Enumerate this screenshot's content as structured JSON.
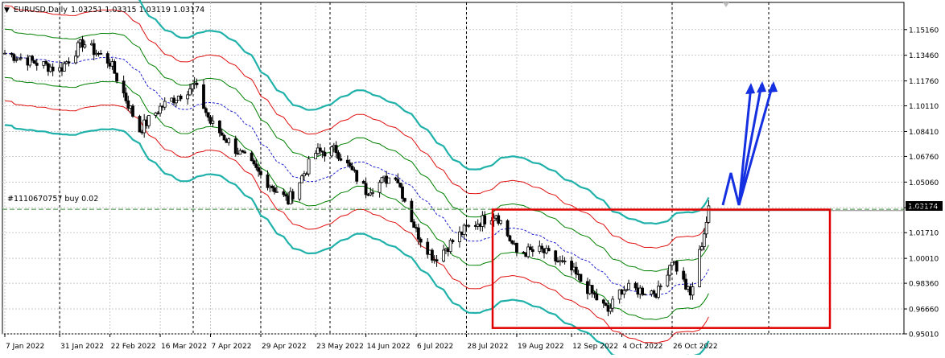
{
  "header": {
    "symbol_label": "EURUSD,Daily",
    "ohlc_label": "1.03251 1.03315 1.03119 1.03174"
  },
  "order_line": {
    "label": "#1110670757 buy 0.02",
    "price": 1.0326
  },
  "current_price": {
    "label": "1.03174",
    "value": 1.03174
  },
  "colors": {
    "background": "#ffffff",
    "grid": "#c8c8c8",
    "candle": "#000000",
    "outer_band": "#20b2aa",
    "middle_band": "#e01010",
    "inner_band": "#008000",
    "center_line": "#2020d0",
    "rectangle": "#e00000",
    "arrows": "#1430e0",
    "order_line": "#3c8c3c",
    "price_tag": "#000000"
  },
  "chart_data": {
    "type": "candlestick",
    "symbol": "EURUSD",
    "timeframe": "Daily",
    "ylim": [
      0.9501,
      1.16
    ],
    "y_ticks": [
      "1.15160",
      "1.13460",
      "1.11760",
      "1.10110",
      "1.08410",
      "1.06760",
      "1.05060",
      "1.03370",
      "1.01710",
      "1.00010",
      "0.98360",
      "0.96660",
      "0.95010"
    ],
    "x_ticks": [
      "7 Jan 2022",
      "31 Jan 2022",
      "22 Feb 2022",
      "16 Mar 2022",
      "7 Apr 2022",
      "29 Apr 2022",
      "23 May 2022",
      "14 Jun 2022",
      "6 Jul 2022",
      "28 Jul 2022",
      "19 Aug 2022",
      "12 Sep 2022",
      "4 Oct 2022",
      "26 Oct 2022"
    ],
    "price_path": [
      [
        "7 Jan 2022",
        1.136
      ],
      [
        "31 Jan 2022",
        1.125
      ],
      [
        "10 Feb 2022",
        1.143
      ],
      [
        "22 Feb 2022",
        1.13
      ],
      [
        "7 Mar 2022",
        1.085
      ],
      [
        "16 Mar 2022",
        1.1
      ],
      [
        "31 Mar 2022",
        1.115
      ],
      [
        "7 Apr 2022",
        1.09
      ],
      [
        "29 Apr 2022",
        1.055
      ],
      [
        "11 May 2022",
        1.038
      ],
      [
        "23 May 2022",
        1.07
      ],
      [
        "1 Jun 2022",
        1.072
      ],
      [
        "14 Jun 2022",
        1.045
      ],
      [
        "27 Jun 2022",
        1.056
      ],
      [
        "6 Jul 2022",
        1.018
      ],
      [
        "14 Jul 2022",
        1.0
      ],
      [
        "28 Jul 2022",
        1.02
      ],
      [
        "10 Aug 2022",
        1.03
      ],
      [
        "19 Aug 2022",
        1.004
      ],
      [
        "30 Aug 2022",
        1.005
      ],
      [
        "12 Sep 2022",
        0.992
      ],
      [
        "28 Sep 2022",
        0.965
      ],
      [
        "4 Oct 2022",
        0.98
      ],
      [
        "20 Oct 2022",
        0.978
      ],
      [
        "26 Oct 2022",
        1.0
      ],
      [
        "3 Nov 2022",
        0.975
      ],
      [
        "11 Nov 2022",
        1.0317
      ]
    ],
    "bands": {
      "center_line": "dashed moving average",
      "inner": "green envelope",
      "middle": "red envelope",
      "outer": "teal envelope"
    },
    "annotations": {
      "rectangle": {
        "x_from": "28 Jul 2022",
        "x_to": "after 26 Oct 2022",
        "y_from": 0.954,
        "y_to": 1.0324
      },
      "arrows": 3,
      "arrow_direction": "up"
    },
    "grid": true
  }
}
